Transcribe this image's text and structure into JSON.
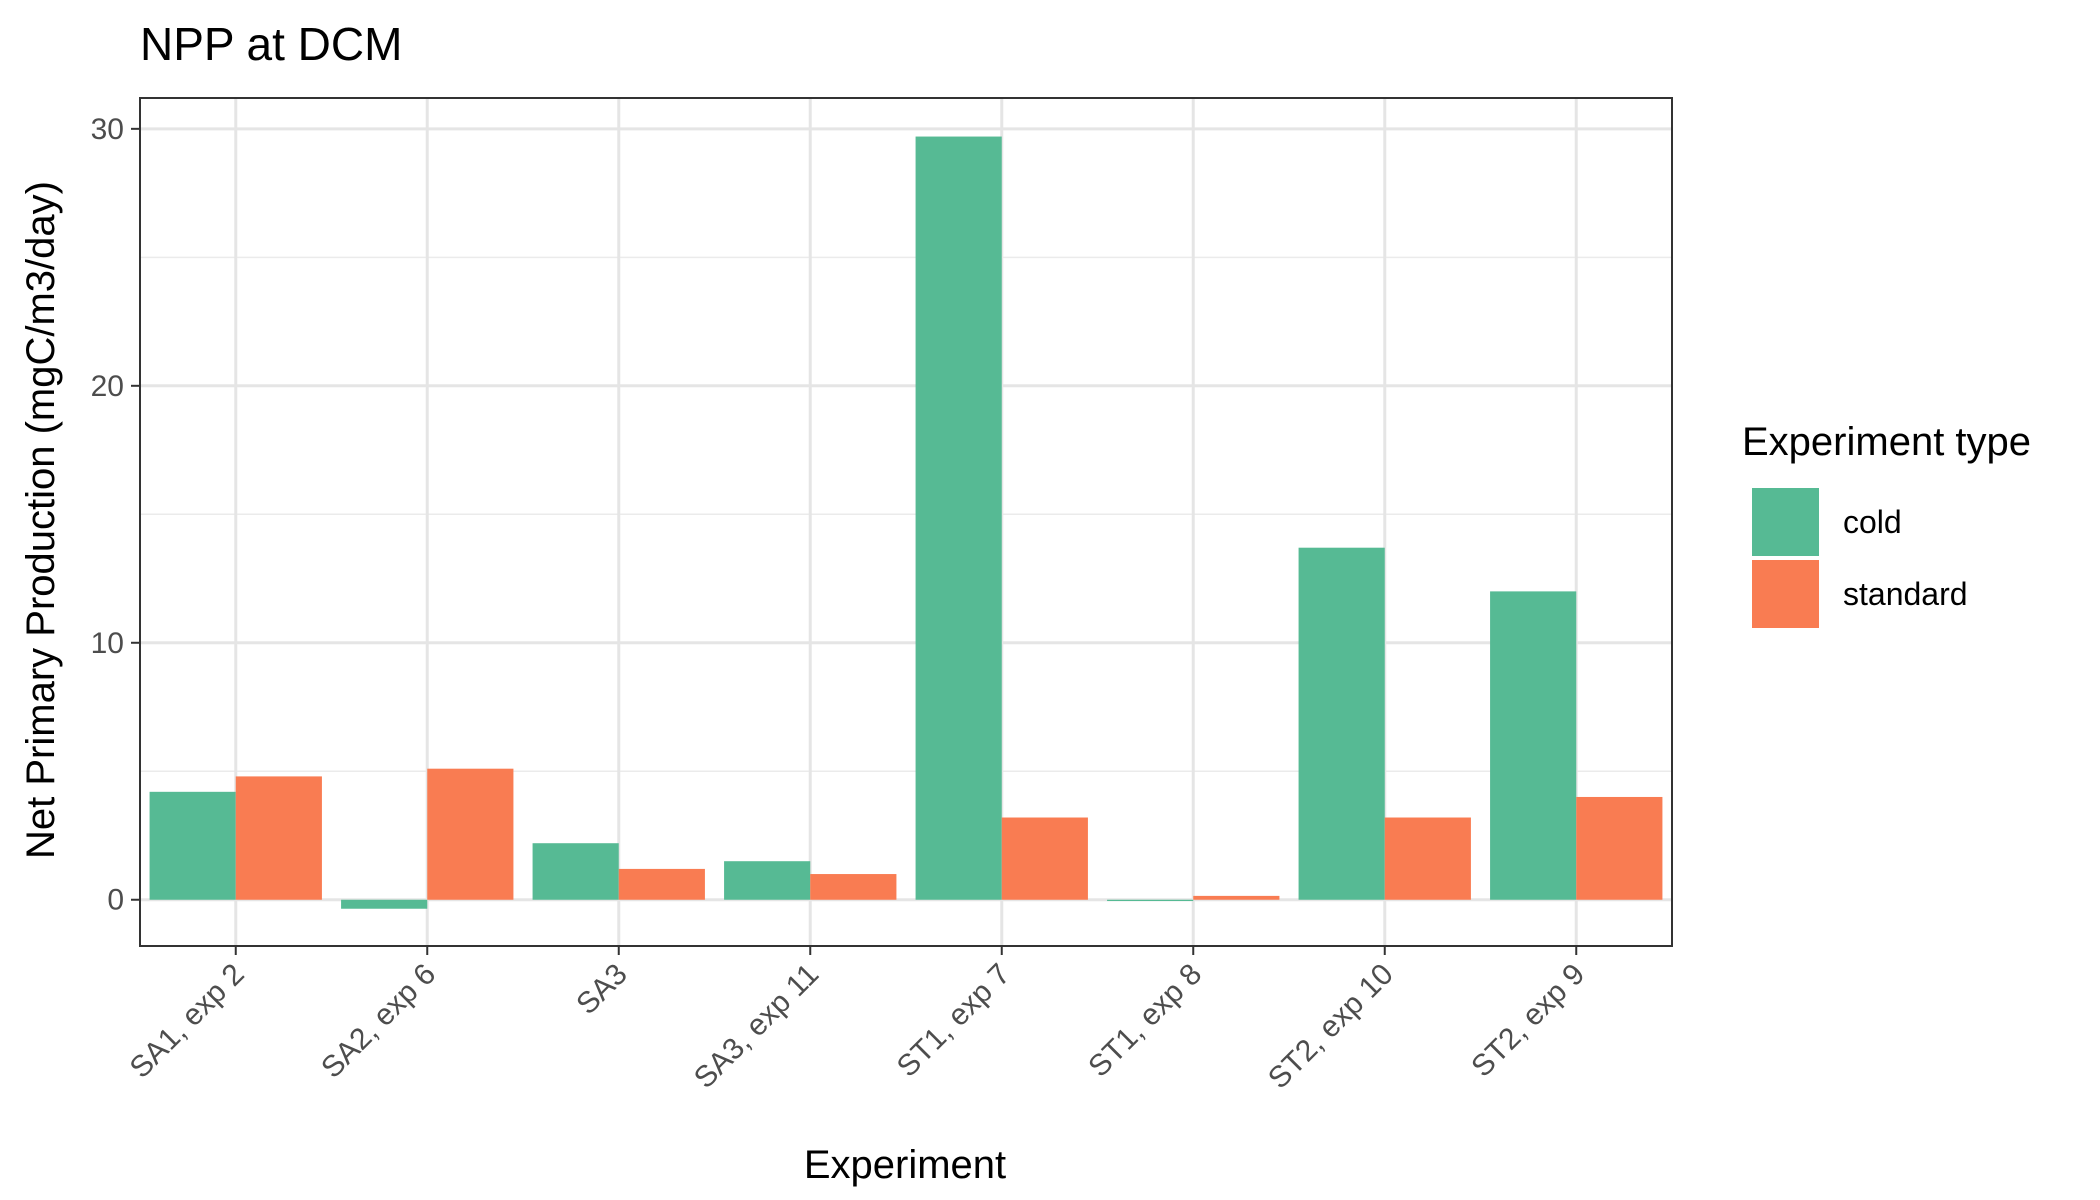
{
  "chart_data": {
    "type": "bar",
    "title": "NPP at DCM",
    "xlabel": "Experiment",
    "ylabel": "Net Primary Production (mgC/m3/day)",
    "categories": [
      "SA1, exp 2",
      "SA2, exp 6",
      "SA3",
      "SA3, exp 11",
      "ST1, exp 7",
      "ST1, exp 8",
      "ST2, exp 10",
      "ST2, exp 9"
    ],
    "series": [
      {
        "name": "cold",
        "color": "#56BA94",
        "values": [
          4.2,
          -0.35,
          2.2,
          1.5,
          29.7,
          -0.05,
          13.7,
          12.0
        ]
      },
      {
        "name": "standard",
        "color": "#F97C52",
        "values": [
          4.8,
          5.1,
          1.2,
          1.0,
          3.2,
          0.15,
          3.2,
          4.0
        ]
      }
    ],
    "ylim": [
      -1.8,
      31.2
    ],
    "yticks": [
      0,
      10,
      20,
      30
    ],
    "legend": {
      "title": "Experiment type",
      "position": "right"
    },
    "grid": true
  }
}
